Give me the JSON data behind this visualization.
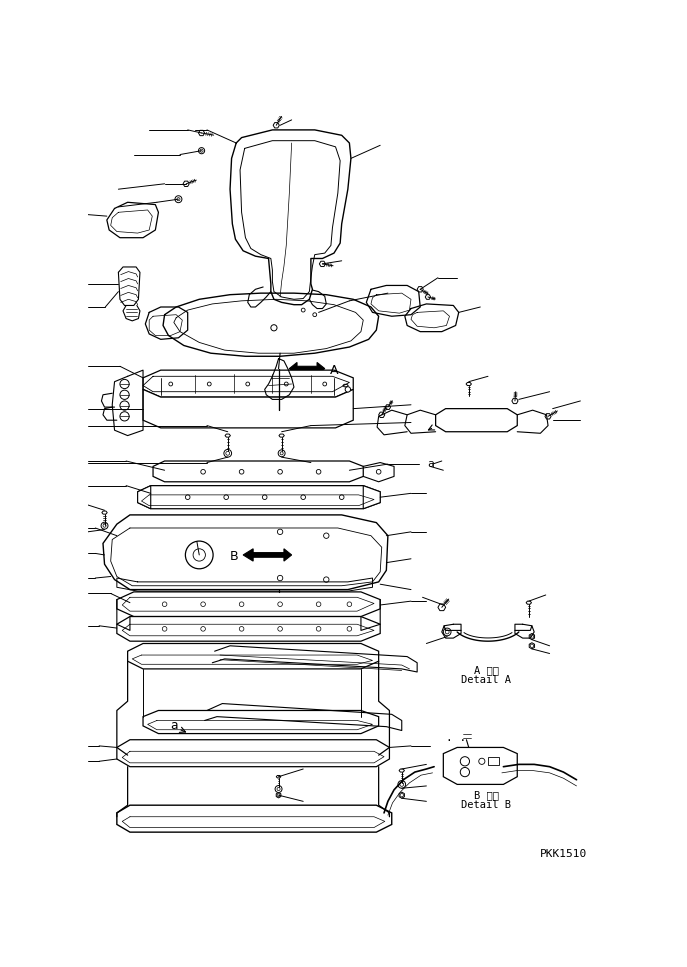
{
  "bg_color": "#ffffff",
  "line_color": "#000000",
  "fig_width": 6.87,
  "fig_height": 9.67,
  "dpi": 100,
  "label_A": "A",
  "label_B": "B",
  "label_a": "a",
  "detail_A_line1": "A 詳細",
  "detail_A_line2": "Detail A",
  "detail_B_line1": "B 詳細",
  "detail_B_line2": "Detail B",
  "watermark": "PKK1510",
  "note_dots": ". ."
}
